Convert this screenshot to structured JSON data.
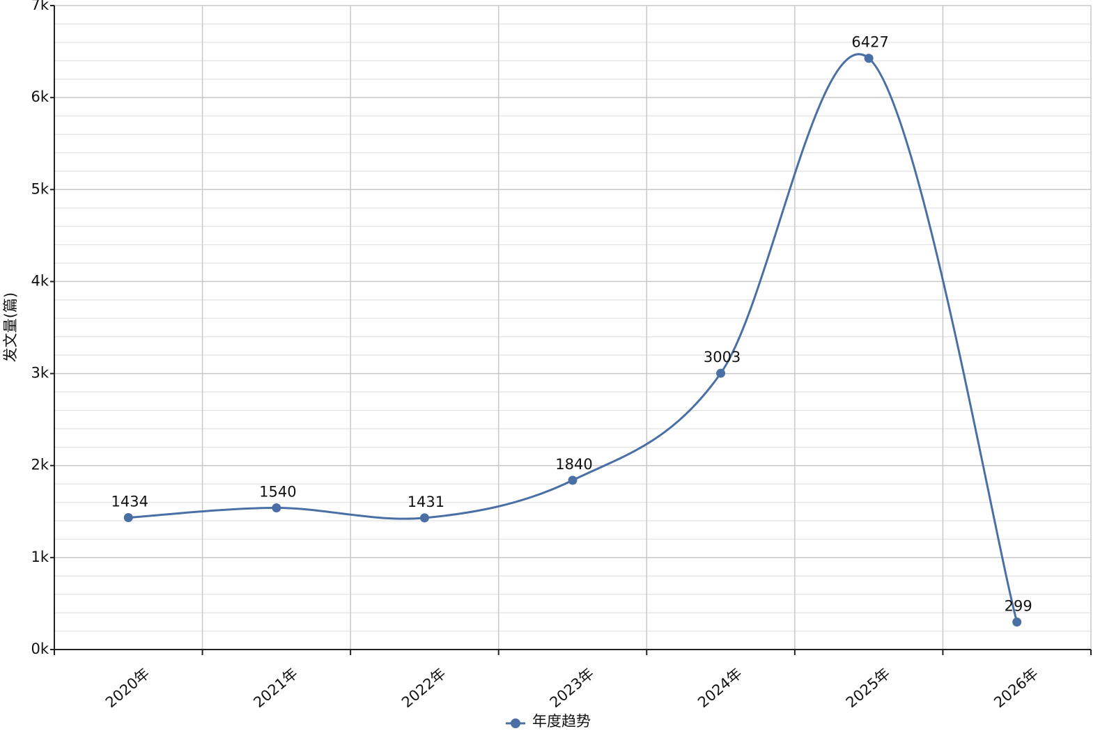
{
  "chart_data": {
    "type": "line",
    "y_label": "发文量(篇)",
    "categories": [
      "2020年",
      "2021年",
      "2022年",
      "2023年",
      "2024年",
      "2025年",
      "2026年"
    ],
    "series": [
      {
        "name": "年度趋势",
        "color": "#4a6fa5",
        "values": [
          1434,
          1540,
          1431,
          1840,
          3003,
          6427,
          299
        ]
      }
    ],
    "ylim": [
      0,
      7000
    ],
    "yticks": [
      {
        "value": 0,
        "label": "0k"
      },
      {
        "value": 1000,
        "label": "1k"
      },
      {
        "value": 2000,
        "label": "2k"
      },
      {
        "value": 3000,
        "label": "3k"
      },
      {
        "value": 4000,
        "label": "4k"
      },
      {
        "value": 5000,
        "label": "5k"
      },
      {
        "value": 6000,
        "label": "6k"
      },
      {
        "value": 7000,
        "label": "7k"
      }
    ],
    "minor_yticks": [
      200,
      400,
      600,
      800,
      1200,
      1400,
      1600,
      1800,
      2200,
      2400,
      2600,
      2800,
      3200,
      3400,
      3600,
      3800,
      4200,
      4400,
      4600,
      4800,
      5200,
      5400,
      5600,
      5800,
      6200,
      6400,
      6600,
      6800
    ],
    "grid": true,
    "smooth": true,
    "legend": "bottom"
  }
}
